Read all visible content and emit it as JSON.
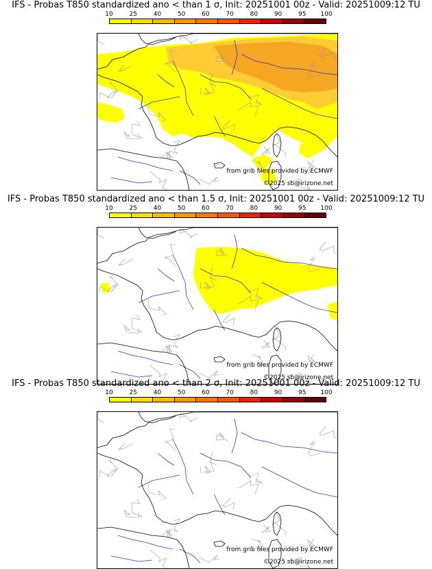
{
  "panels": [
    {
      "title": "IFS - Probas T850  standardized ano < than 1 σ, Init: 20251001 00z - Valid: 20251009:12 TU",
      "shading_level": "high"
    },
    {
      "title": "IFS - Probas T850  standardized ano < than 1.5 σ, Init: 20251001 00z - Valid: 20251009:12 TU",
      "shading_level": "medium"
    },
    {
      "title": "IFS - Probas T850  standardized ano < than 2 σ, Init: 20251001 00z - Valid: 20251009:12 TU",
      "shading_level": "none"
    }
  ],
  "colorbar": {
    "labels": [
      "10",
      "25",
      "40",
      "50",
      "60",
      "70",
      "80",
      "90",
      "95",
      "100"
    ],
    "colors": [
      "#ffff00",
      "#ffdd00",
      "#ffbb00",
      "#ff9900",
      "#ff7700",
      "#ff5500",
      "#ee2200",
      "#cc0000",
      "#990000",
      "#660000"
    ]
  },
  "map": {
    "coast_color": "#000000",
    "river_color": "#3333cc",
    "border_color": "#999999",
    "fill_colors": {
      "low": "#ffff00",
      "mid": "#ffcc33",
      "high": "#f5a623"
    }
  },
  "credits": {
    "source": "from grib files provided by ECMWF",
    "copyright": "©2025 sb@irizone.net"
  }
}
